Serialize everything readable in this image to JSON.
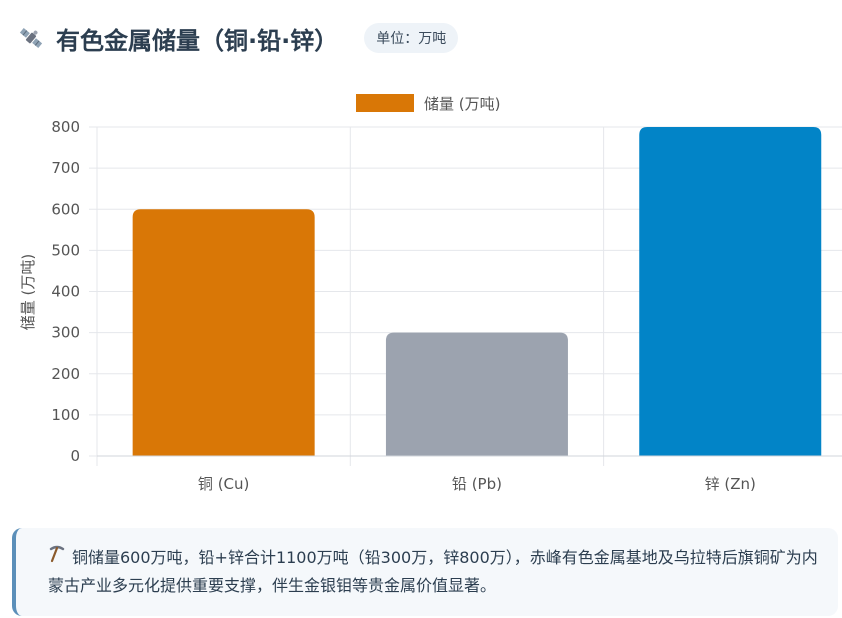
{
  "header": {
    "icon": "satellite-icon",
    "title": "有色金属储量（铜·铅·锌）",
    "unit_badge": "单位：万吨"
  },
  "chart_data": {
    "type": "bar",
    "categories": [
      "铜 (Cu)",
      "铅 (Pb)",
      "锌 (Zn)"
    ],
    "series": [
      {
        "name": "储量 (万吨)",
        "values": [
          600,
          300,
          800
        ],
        "colors": [
          "#d97706",
          "#9ca3af",
          "#0284c7"
        ]
      }
    ],
    "ylabel": "储量 (万吨)",
    "ylim": [
      0,
      800
    ],
    "yticks": [
      0,
      100,
      200,
      300,
      400,
      500,
      600,
      700,
      800
    ],
    "grid": true,
    "legend_position": "top-center"
  },
  "note": {
    "icon": "pickaxe-icon",
    "text": "铜储量600万吨，铅+锌合计1100万吨（铅300万，锌800万），赤峰有色金属基地及乌拉特后旗铜矿为内蒙古产业多元化提供重要支撑，伴生金银钼等贵金属价值显著。"
  }
}
